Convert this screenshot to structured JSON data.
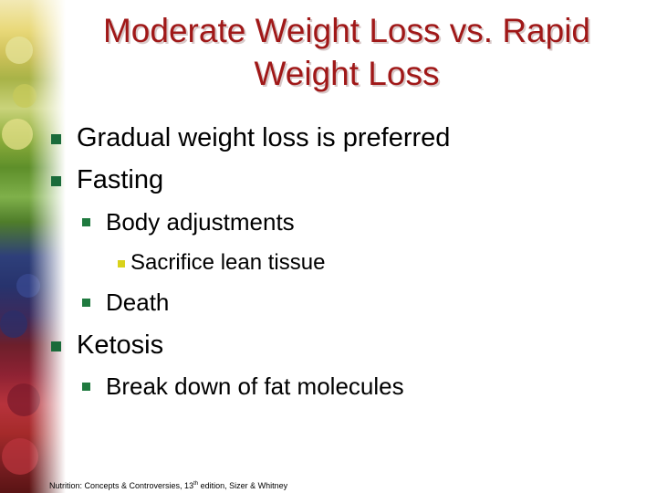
{
  "slide": {
    "title_line1": "Moderate Weight Loss vs. Rapid",
    "title_line2": "Weight Loss",
    "bullets": [
      "Gradual weight loss is preferred",
      "Fasting",
      "Body adjustments",
      "Sacrifice lean tissue",
      "Death",
      "Ketosis",
      "Break down of fat molecules"
    ],
    "footer_prefix": "Nutrition: Concepts & Controversies, 13",
    "footer_sup": "th",
    "footer_suffix": " edition, Sizer & Whitney"
  },
  "colors": {
    "title": "#a01818",
    "bullet_level1": "#1a6b3a",
    "bullet_level2": "#1f7a3f",
    "bullet_level3": "#d9d21b"
  },
  "decoration": {
    "left_strip_image": "fruits-and-vegetables-photo"
  }
}
